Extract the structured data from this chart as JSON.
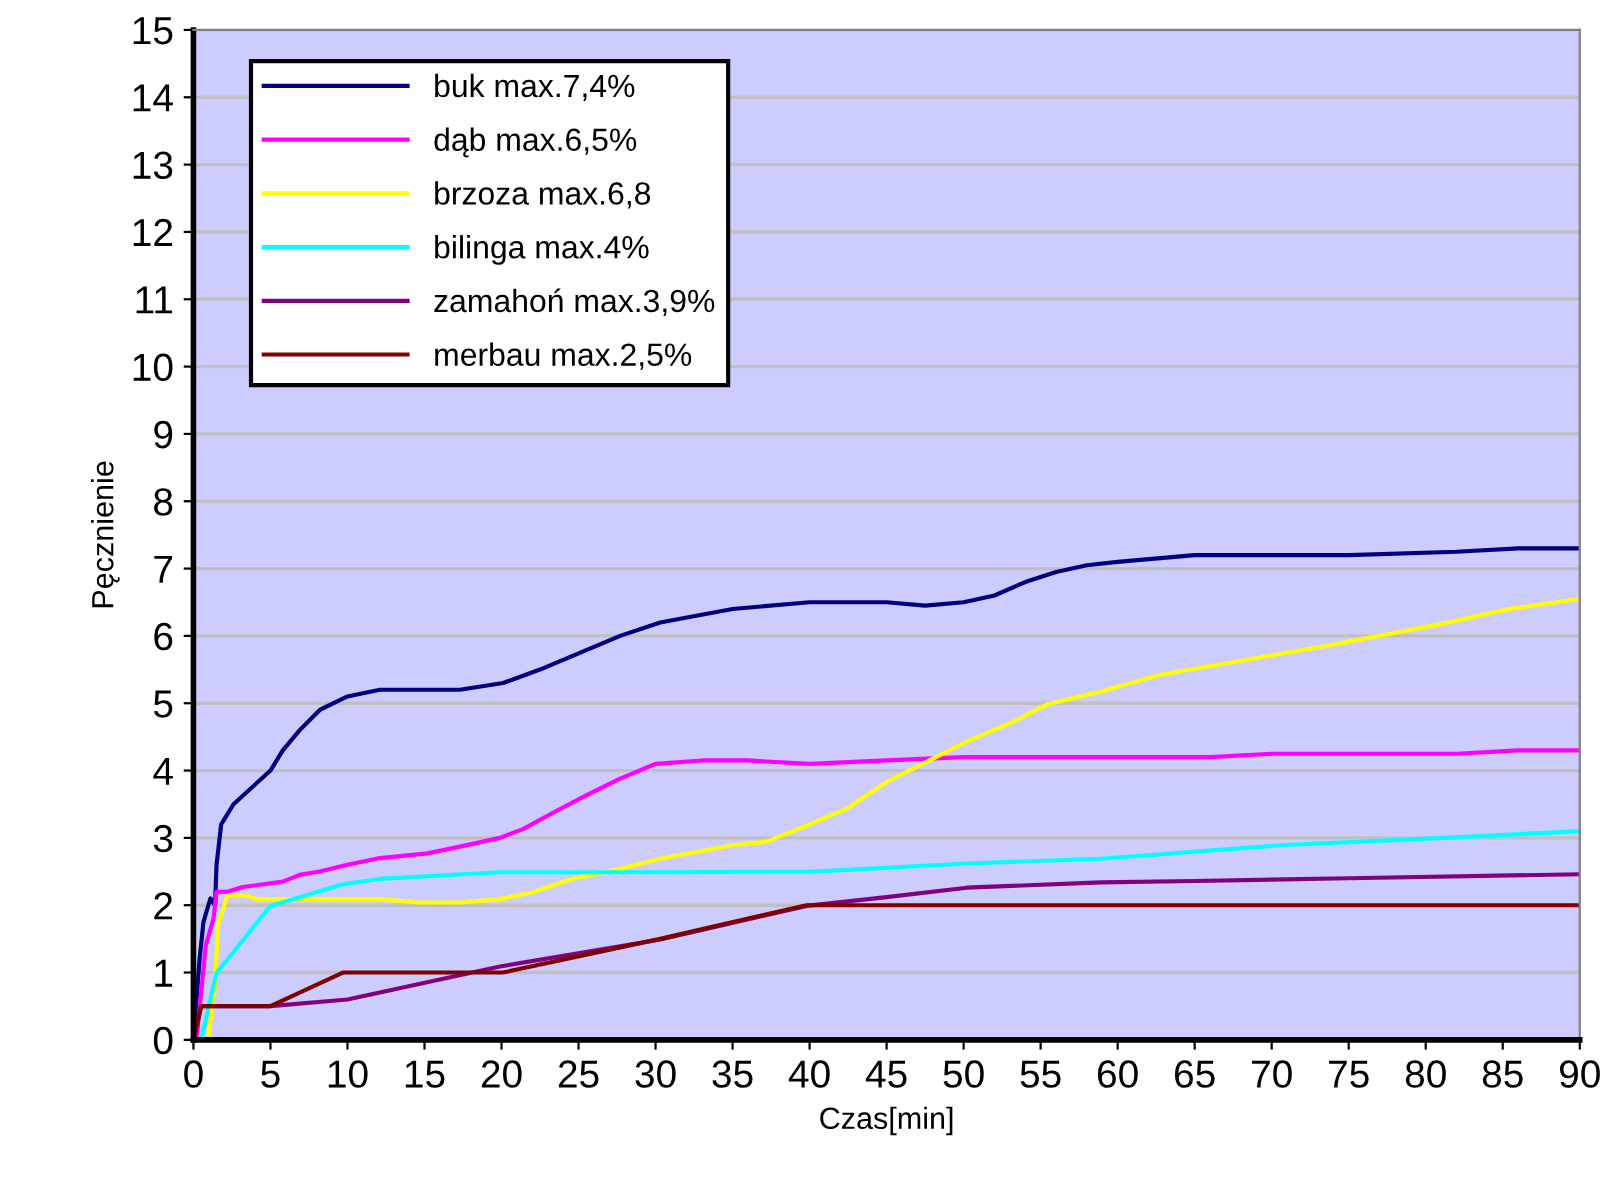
{
  "chart_data": {
    "type": "line",
    "xlabel": "Czas[min]",
    "ylabel": "Pęcznienie",
    "xlim": [
      0,
      90
    ],
    "ylim": [
      0,
      15
    ],
    "xticks": [
      0,
      5,
      10,
      15,
      20,
      25,
      30,
      35,
      40,
      45,
      50,
      55,
      60,
      65,
      70,
      75,
      80,
      85,
      90
    ],
    "yticks": [
      0,
      1,
      2,
      3,
      4,
      5,
      6,
      7,
      8,
      9,
      10,
      11,
      12,
      13,
      14,
      15
    ],
    "grid": "y",
    "legend": "top left",
    "marker": "none",
    "line_style": "solid",
    "series": [
      {
        "name": "buk max.7,4%",
        "color": "#000080",
        "x": [
          0,
          0.4,
          0.65,
          1.1,
          1.4,
          1.5,
          1.8,
          2.6,
          5,
          5.8,
          6.9,
          8.2,
          10,
          12.1,
          17.3,
          20.1,
          22.5,
          27.7,
          30.3,
          35,
          40,
          45,
          47.5,
          50,
          52,
          54,
          56,
          58,
          60,
          65,
          70,
          75,
          82,
          86,
          90
        ],
        "values": [
          0,
          1.2,
          1.75,
          2.1,
          2.0,
          2.6,
          3.2,
          3.5,
          4.0,
          4.3,
          4.6,
          4.9,
          5.1,
          5.2,
          5.2,
          5.3,
          5.5,
          6.0,
          6.2,
          6.4,
          6.5,
          6.5,
          6.45,
          6.5,
          6.6,
          6.8,
          6.95,
          7.05,
          7.1,
          7.2,
          7.2,
          7.2,
          7.25,
          7.3,
          7.3
        ]
      },
      {
        "name": "dąb max.6,5%",
        "color": "#ff00ff",
        "x": [
          0.2,
          0.8,
          1.3,
          1.5,
          2.2,
          3.2,
          5.8,
          6.9,
          8.2,
          10,
          12.1,
          15.2,
          17.3,
          19.9,
          21.4,
          23.4,
          25.5,
          27.7,
          30,
          33,
          36,
          40,
          45,
          50,
          60,
          66,
          70,
          82,
          86,
          90
        ],
        "values": [
          0,
          1.4,
          1.8,
          2.2,
          2.2,
          2.27,
          2.35,
          2.45,
          2.5,
          2.6,
          2.7,
          2.77,
          2.87,
          3.0,
          3.13,
          3.38,
          3.63,
          3.88,
          4.1,
          4.15,
          4.15,
          4.1,
          4.15,
          4.2,
          4.2,
          4.2,
          4.25,
          4.25,
          4.3,
          4.3
        ]
      },
      {
        "name": "brzoza max.6,8",
        "color": "#ffff00",
        "x": [
          0.95,
          1.4,
          1.6,
          2.2,
          3.5,
          4.1,
          6.5,
          12.1,
          14.7,
          17.3,
          19.9,
          22,
          24.6,
          27.7,
          30.3,
          35,
          37.2,
          39.8,
          42.4,
          45,
          47.6,
          50.2,
          53.3,
          55.4,
          58.9,
          62.7,
          74,
          81.3,
          85.2,
          90
        ],
        "values": [
          0,
          0.8,
          1.7,
          2.14,
          2.14,
          2.09,
          2.09,
          2.09,
          2.04,
          2.04,
          2.09,
          2.19,
          2.39,
          2.54,
          2.69,
          2.89,
          2.94,
          3.18,
          3.43,
          3.83,
          4.13,
          4.43,
          4.73,
          4.98,
          5.17,
          5.42,
          5.87,
          6.19,
          6.39,
          6.55
        ]
      },
      {
        "name": "bilinga max.4%",
        "color": "#00ffff",
        "x": [
          0.5,
          1.5,
          2.2,
          5,
          9.7,
          12.1,
          19.9,
          30.3,
          40.2,
          50.2,
          58.9,
          70.5,
          81.3,
          90
        ],
        "values": [
          0,
          1.0,
          1.19,
          1.99,
          2.31,
          2.39,
          2.49,
          2.49,
          2.5,
          2.62,
          2.69,
          2.89,
          3.0,
          3.1
        ]
      },
      {
        "name": "zamahoń max.3,9%",
        "color": "#800080",
        "x": [
          0,
          0.5,
          5,
          10,
          19.9,
          30.3,
          39.8,
          45,
          50.2,
          58.9,
          65,
          75,
          90
        ],
        "values": [
          0,
          0.5,
          0.5,
          0.6,
          1.09,
          1.49,
          1.99,
          2.12,
          2.26,
          2.34,
          2.36,
          2.4,
          2.46
        ]
      },
      {
        "name": "merbau max.2,5%",
        "color": "#800000",
        "x": [
          0,
          0.5,
          5,
          9.7,
          20.1,
          30.3,
          39.8,
          50,
          60,
          70,
          80,
          90
        ],
        "values": [
          0,
          0.5,
          0.5,
          1.0,
          1.0,
          1.5,
          2.0,
          2.0,
          2.0,
          2.0,
          2.0,
          2.0
        ]
      }
    ]
  }
}
